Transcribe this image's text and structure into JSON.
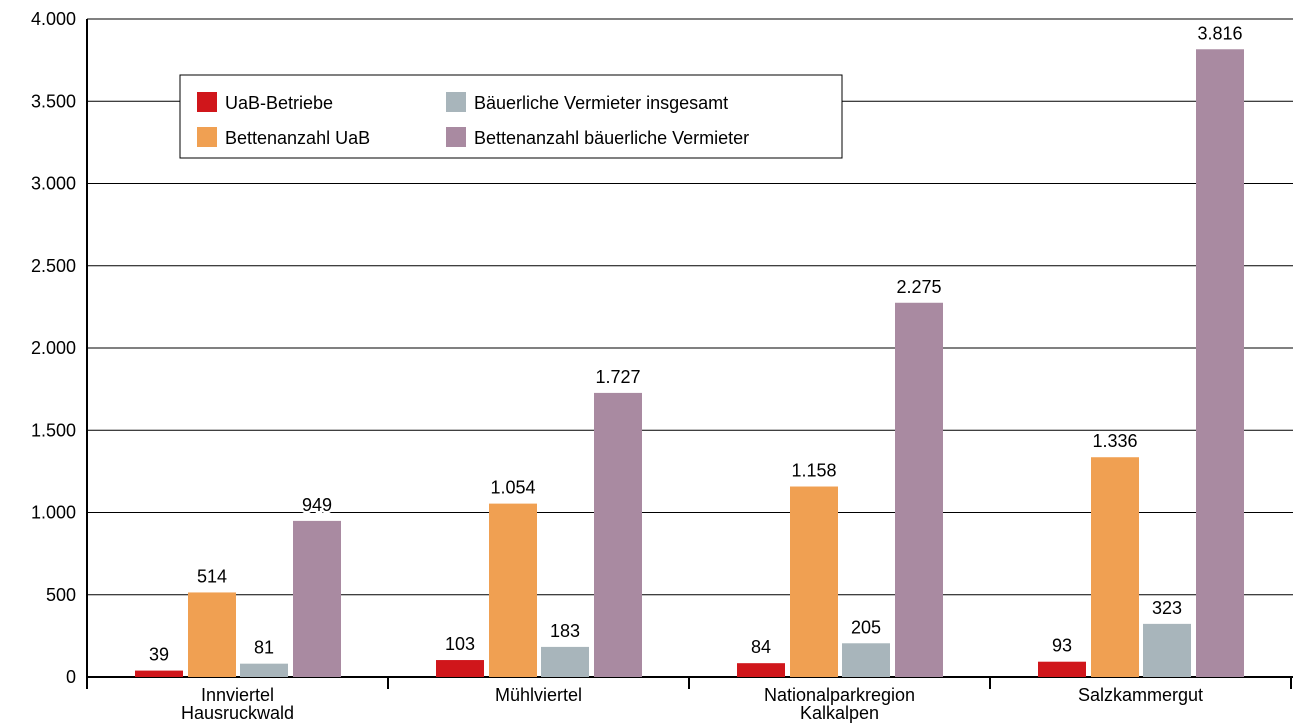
{
  "chart_data": {
    "type": "bar",
    "categories": [
      "Innviertel\nHausruckwald",
      "Mühlviertel",
      "Nationalparkregion\nKalkalpen",
      "Salzkammergut"
    ],
    "series": [
      {
        "name": "UaB-Betriebe",
        "color": "#d0161b",
        "values": [
          39,
          103,
          84,
          93
        ]
      },
      {
        "name": "Bettenanzahl UaB",
        "color": "#f0a052",
        "values": [
          514,
          1054,
          1158,
          1336
        ],
        "value_labels": [
          "514",
          "1.054",
          "1.158",
          "1.336"
        ]
      },
      {
        "name": "Bäuerliche Vermieter insgesamt",
        "color": "#a8b5bb",
        "values": [
          81,
          183,
          205,
          323
        ]
      },
      {
        "name": "Bettenanzahl bäuerliche Vermieter",
        "color": "#a98aa1",
        "values": [
          949,
          1727,
          2275,
          3816
        ],
        "value_labels": [
          "949",
          "1.727",
          "2.275",
          "3.816"
        ]
      }
    ],
    "ylim": [
      0,
      4000
    ],
    "yticks": [
      0,
      500,
      {
        "value": 1000,
        "label": "1.000"
      },
      {
        "value": 1500,
        "label": "1.500"
      },
      {
        "value": 2000,
        "label": "2.000"
      },
      {
        "value": 2500,
        "label": "2.500"
      },
      {
        "value": 3000,
        "label": "3.000"
      },
      {
        "value": 3500,
        "label": "3.500"
      },
      {
        "value": 4000,
        "label": "4.000"
      }
    ],
    "grid": true
  }
}
